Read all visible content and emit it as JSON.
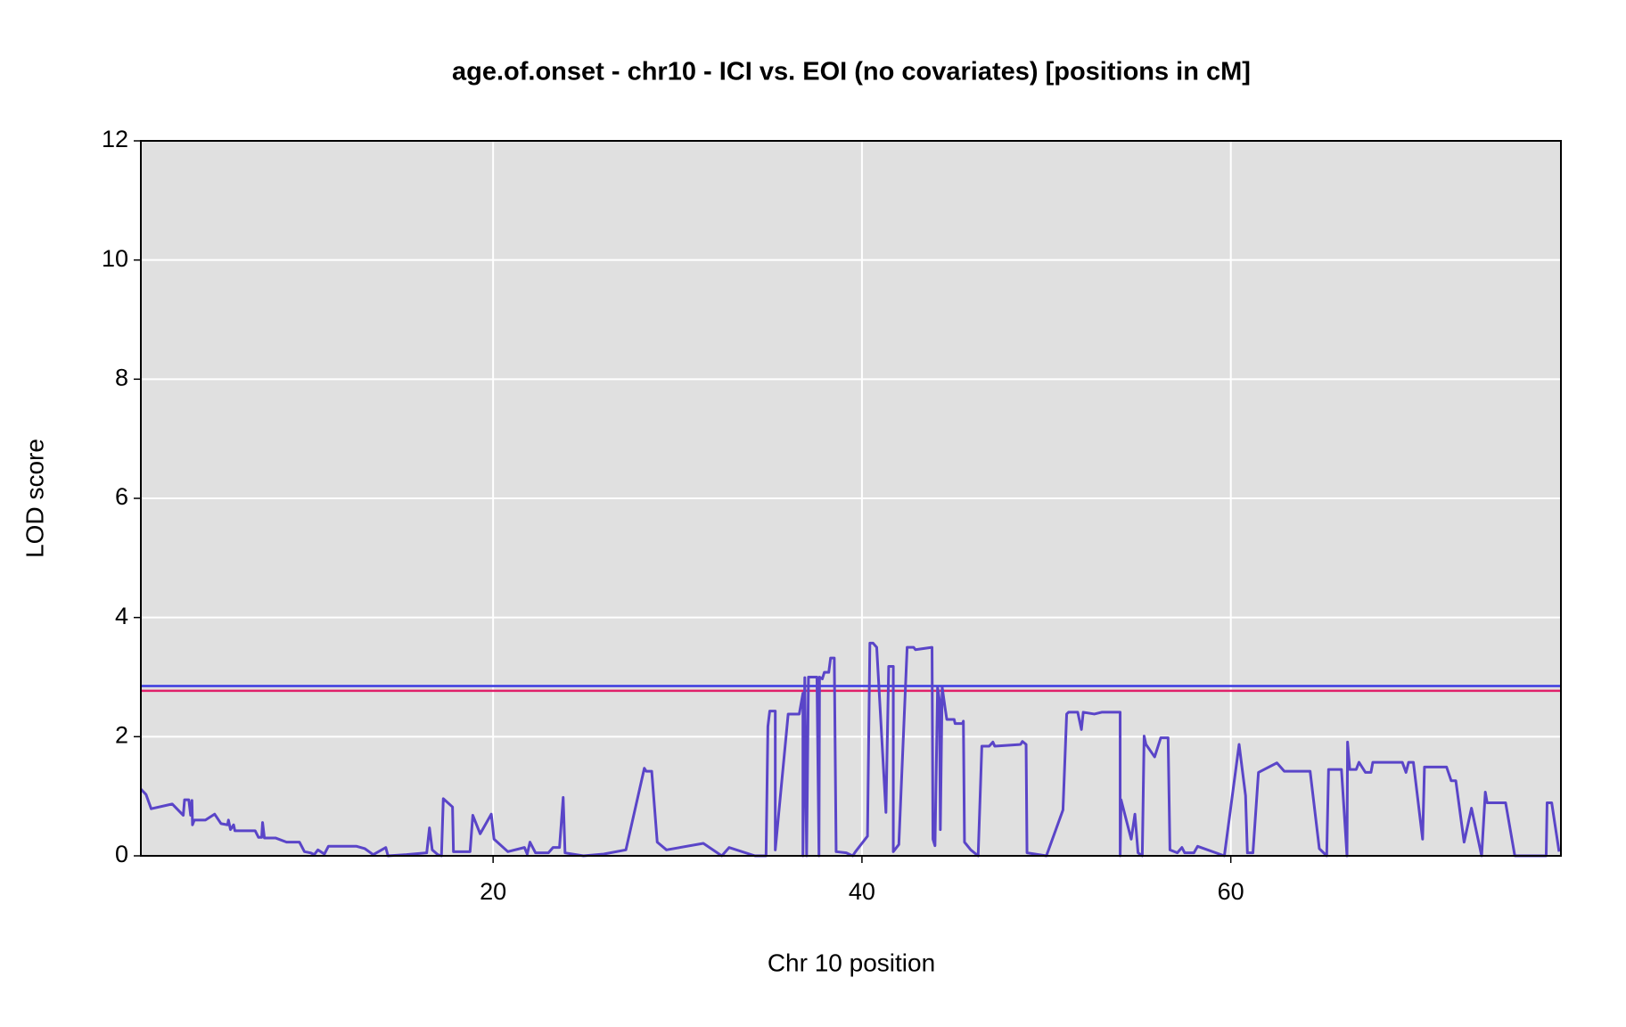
{
  "chart_data": {
    "type": "line",
    "title": "age.of.onset - chr10 - ICI vs. EOI (no covariates) [positions in cM]",
    "x_label": "Chr 10 position",
    "y_label": "LOD score",
    "xlim": [
      0.9,
      77.9
    ],
    "ylim": [
      0,
      12
    ],
    "xticks": [
      20,
      40,
      60
    ],
    "yticks": [
      0,
      2,
      4,
      6,
      8,
      10,
      12
    ],
    "grid": true,
    "background": "#e0e0e0",
    "thresholds": [
      {
        "value": 2.85,
        "color": "#3a3ae0"
      },
      {
        "value": 2.77,
        "color": "#e0206a"
      }
    ],
    "x": [
      0.9,
      1.18,
      1.46,
      2.6,
      3.2,
      3.27,
      3.5,
      3.6,
      3.67,
      3.7,
      3.8,
      4.4,
      4.9,
      5.25,
      5.6,
      5.65,
      5.76,
      5.93,
      6.0,
      7.1,
      7.28,
      7.45,
      7.5,
      7.6,
      8.2,
      8.8,
      9.5,
      9.77,
      10.1,
      10.3,
      10.5,
      10.85,
      11.07,
      12.6,
      13.05,
      13.5,
      14.18,
      14.3,
      15.3,
      16.4,
      16.55,
      16.7,
      17.0,
      17.2,
      17.3,
      17.8,
      17.85,
      18.75,
      18.9,
      19.3,
      19.9,
      20.05,
      20.8,
      21.7,
      21.85,
      22.0,
      22.1,
      22.3,
      23.0,
      23.25,
      23.6,
      23.8,
      23.9,
      24.9,
      26.0,
      27.2,
      28.2,
      28.3,
      28.6,
      28.9,
      29.4,
      31.4,
      32.4,
      32.8,
      34.2,
      34.8,
      34.9,
      35.0,
      35.3,
      35.3,
      36.0,
      36.6,
      36.8,
      36.8,
      36.9,
      37.0,
      37.1,
      37.56,
      37.67,
      37.7,
      37.85,
      37.96,
      38.2,
      38.3,
      38.5,
      38.6,
      39.15,
      39.5,
      39.65,
      40.3,
      40.43,
      40.6,
      40.8,
      41.3,
      41.45,
      41.7,
      41.7,
      42.0,
      42.45,
      42.8,
      42.9,
      43.8,
      43.85,
      43.96,
      44.1,
      44.2,
      44.25,
      44.35,
      44.5,
      44.6,
      45.0,
      45.05,
      45.45,
      45.5,
      45.56,
      45.9,
      46.3,
      46.5,
      46.9,
      47.1,
      47.2,
      48.6,
      48.7,
      48.9,
      48.95,
      50.0,
      50.9,
      51.1,
      51.2,
      51.7,
      51.9,
      52.0,
      52.6,
      53.0,
      54.0,
      54.0,
      54.05,
      54.6,
      54.8,
      54.97,
      55.2,
      55.3,
      55.4,
      55.87,
      56.2,
      56.6,
      56.7,
      57.1,
      57.35,
      57.5,
      58.0,
      58.2,
      59.65,
      60.45,
      60.8,
      60.9,
      61.2,
      61.5,
      62.5,
      62.9,
      64.3,
      64.8,
      65.2,
      65.3,
      66.0,
      66.3,
      66.33,
      66.45,
      66.8,
      66.95,
      67.3,
      67.6,
      67.7,
      69.3,
      69.5,
      69.64,
      69.9,
      70.4,
      70.5,
      71.7,
      71.95,
      72.2,
      72.65,
      73.05,
      73.6,
      73.8,
      73.9,
      74.9,
      75.4,
      77.1,
      77.15,
      77.4,
      77.8
    ],
    "series": [
      {
        "color": "#5a45c8",
        "values": [
          1.12,
          1.03,
          0.79,
          0.87,
          0.68,
          0.94,
          0.94,
          0.68,
          0.93,
          0.52,
          0.6,
          0.6,
          0.7,
          0.54,
          0.52,
          0.6,
          0.44,
          0.52,
          0.42,
          0.42,
          0.31,
          0.31,
          0.56,
          0.3,
          0.3,
          0.23,
          0.23,
          0.07,
          0.05,
          0.02,
          0.1,
          0.03,
          0.16,
          0.16,
          0.12,
          0.02,
          0.14,
          0,
          0.02,
          0.05,
          0.47,
          0.1,
          0.02,
          0,
          0.96,
          0.82,
          0.07,
          0.07,
          0.68,
          0.37,
          0.7,
          0.28,
          0.07,
          0.14,
          0.03,
          0.23,
          0.17,
          0.05,
          0.05,
          0.14,
          0.14,
          0.98,
          0.05,
          0,
          0.03,
          0.1,
          1.47,
          1.42,
          1.42,
          0.23,
          0.1,
          0.21,
          0,
          0.14,
          0,
          0,
          2.17,
          2.43,
          2.43,
          0.1,
          2.38,
          2.38,
          2.73,
          0,
          2.99,
          0,
          3.0,
          3.0,
          0,
          3.0,
          2.97,
          3.08,
          3.08,
          3.32,
          3.32,
          0.07,
          0.05,
          0,
          0.07,
          0.33,
          3.57,
          3.57,
          3.5,
          0.73,
          3.18,
          3.18,
          0.07,
          0.19,
          3.5,
          3.5,
          3.46,
          3.5,
          0.28,
          0.17,
          2.83,
          2.62,
          0.44,
          2.83,
          2.5,
          2.29,
          2.29,
          2.22,
          2.22,
          2.26,
          0.23,
          0.1,
          0,
          1.84,
          1.84,
          1.91,
          1.84,
          1.87,
          1.92,
          1.87,
          0.05,
          0,
          0.77,
          2.38,
          2.41,
          2.41,
          2.12,
          2.41,
          2.38,
          2.41,
          2.41,
          0,
          0.94,
          0.28,
          0.7,
          0.05,
          0,
          2.01,
          1.87,
          1.66,
          1.98,
          1.98,
          0.1,
          0.05,
          0.14,
          0.05,
          0.05,
          0.16,
          0,
          1.87,
          1.01,
          0.05,
          0.05,
          1.4,
          1.56,
          1.42,
          1.42,
          0.12,
          0,
          1.45,
          1.45,
          0,
          1.91,
          1.45,
          1.45,
          1.57,
          1.4,
          1.4,
          1.57,
          1.57,
          1.4,
          1.57,
          1.57,
          0.28,
          1.49,
          1.49,
          1.26,
          1.26,
          0.23,
          0.8,
          0,
          1.07,
          0.89,
          0.89,
          0,
          0,
          0.89,
          0.89,
          0.07
        ]
      }
    ]
  }
}
